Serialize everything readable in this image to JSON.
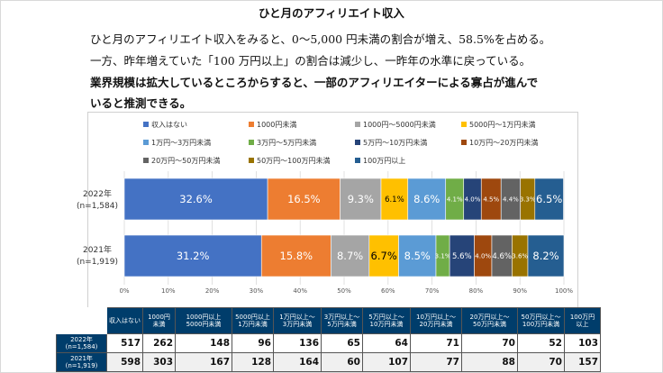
{
  "heading": "ひと月のアフィリエイト収入",
  "paragraph": {
    "line1": "ひと月のアフィリエイト収入をみると、0～5,000 円未満の割合が増え、58.5%を占める。",
    "line2": "一方、昨年増えていた「100 万円以上」の割合は減少し、一昨年の水準に戻っている。",
    "line3": "業界規模は拡大しているところからすると、一部のアフィリエイターによる寡占が進んで",
    "line4": "いると推測できる。"
  },
  "chart_data": {
    "type": "bar",
    "orientation": "horizontal-stacked-100",
    "categories": [
      {
        "line1": "2022年",
        "line2": "(n=1,584)"
      },
      {
        "line1": "2021年",
        "line2": "(n=1,919)"
      }
    ],
    "series": [
      {
        "name": "収入はない",
        "color": "#4472c4",
        "values": [
          32.6,
          31.2
        ]
      },
      {
        "name": "1000円未満",
        "color": "#ed7d31",
        "values": [
          16.5,
          15.8
        ]
      },
      {
        "name": "1000円～5000円未満",
        "color": "#a5a5a5",
        "values": [
          9.3,
          8.7
        ]
      },
      {
        "name": "5000円～1万円未満",
        "color": "#ffc000",
        "values": [
          6.1,
          6.7
        ]
      },
      {
        "name": "1万円～3万円未満",
        "color": "#5b9bd5",
        "values": [
          8.6,
          8.5
        ]
      },
      {
        "name": "3万円～5万円未満",
        "color": "#70ad47",
        "values": [
          4.1,
          3.1
        ]
      },
      {
        "name": "5万円～10万円未満",
        "color": "#264478",
        "values": [
          4.0,
          5.6
        ]
      },
      {
        "name": "10万円～20万円未満",
        "color": "#9e480e",
        "values": [
          4.5,
          4.0
        ]
      },
      {
        "name": "20万円～50万円未満",
        "color": "#636363",
        "values": [
          4.4,
          4.6
        ]
      },
      {
        "name": "50万円～100万円未満",
        "color": "#997300",
        "values": [
          3.3,
          3.6
        ]
      },
      {
        "name": "100万円以上",
        "color": "#255e91",
        "values": [
          6.5,
          8.2
        ]
      }
    ],
    "data_labels": [
      [
        "32.6%",
        "16.5%",
        "9.3%",
        "6.1%",
        "8.6%",
        "4.1%",
        "4.0%",
        "4.5%",
        "4.4%",
        "3.3%",
        "6.5%"
      ],
      [
        "31.2%",
        "15.8%",
        "8.7%",
        "6.7%",
        "8.5%",
        "3.1%",
        "5.6%",
        "4.0%",
        "4.6%",
        "3.6%",
        "8.2%"
      ]
    ],
    "xlim": [
      0,
      100
    ],
    "xticks": [
      "0%",
      "10%",
      "20%",
      "30%",
      "40%",
      "50%",
      "60%",
      "70%",
      "80%",
      "90%",
      "100%"
    ],
    "grid": true,
    "legend_position": "top"
  },
  "table": {
    "headers": [
      [
        "収入はない"
      ],
      [
        "1000円",
        "未満"
      ],
      [
        "1000円以上",
        "5000円未満"
      ],
      [
        "5000円以上",
        "1万円未満"
      ],
      [
        "1万円以上～",
        "3万円未満"
      ],
      [
        "3万円以上～",
        "5万円未満"
      ],
      [
        "5万円以上～",
        "10万円未満"
      ],
      [
        "10万円以上～",
        "20万円未満"
      ],
      [
        "20万円以上～",
        "50万円未満"
      ],
      [
        "50万円以上～",
        "100万円未満"
      ],
      [
        "100万円",
        "以上"
      ]
    ],
    "rows": [
      {
        "label1": "2022年",
        "label2": "(n=1,584)",
        "values": [
          "517",
          "262",
          "148",
          "96",
          "136",
          "65",
          "64",
          "71",
          "70",
          "52",
          "103"
        ]
      },
      {
        "label1": "2021年",
        "label2": "(n=1,919)",
        "values": [
          "598",
          "303",
          "167",
          "128",
          "164",
          "60",
          "107",
          "77",
          "88",
          "70",
          "157"
        ]
      }
    ]
  }
}
